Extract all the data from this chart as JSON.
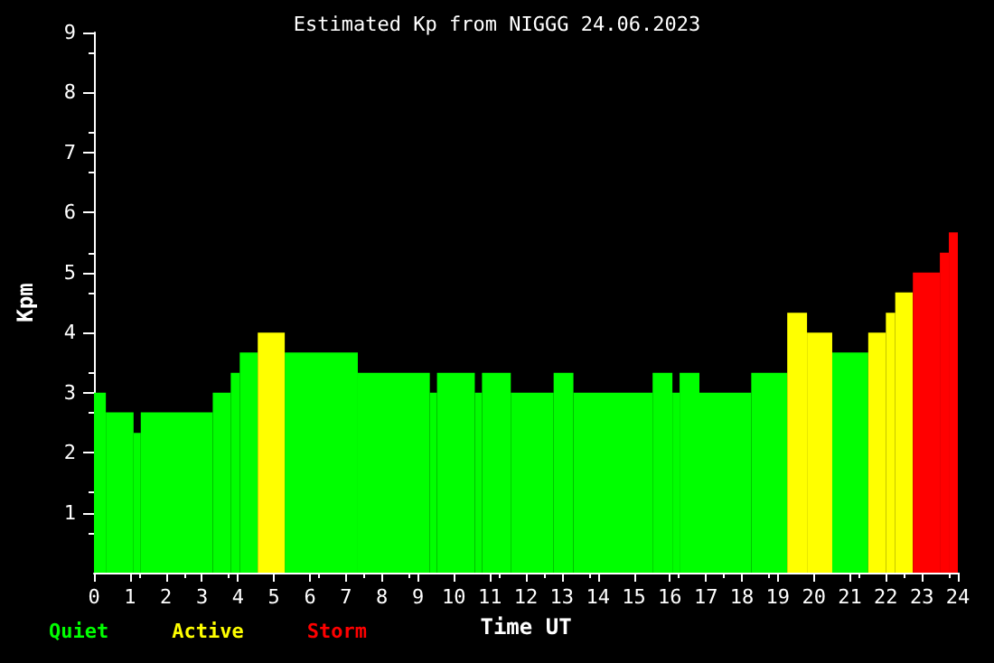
{
  "chart_data": {
    "type": "histogram",
    "title": "Estimated Kp from NIGGG 24.06.2023",
    "xlabel": "Time UT",
    "ylabel": "Kpm",
    "bins": [
      0,
      0.33,
      1.1,
      1.3,
      3.3,
      3.8,
      4.05,
      4.55,
      5.3,
      7.33,
      9.33,
      9.53,
      10.58,
      10.78,
      11.58,
      12.77,
      13.32,
      15.52,
      16.07,
      16.27,
      16.82,
      18.26,
      19.26,
      19.81,
      20.51,
      21.51,
      22.0,
      22.26,
      22.75,
      23.5,
      23.75,
      24
    ],
    "series": [
      {
        "name": "Quiet",
        "color": "#00ff00",
        "values": [
          3,
          2.67,
          2.33,
          2.67,
          3,
          3.33,
          3.67,
          null,
          3.67,
          3.33,
          3,
          3.33,
          3,
          3.33,
          3,
          3.33,
          3,
          3.33,
          3,
          3.33,
          3,
          3.33,
          null,
          null,
          3.67,
          null,
          null,
          null,
          null,
          null,
          null
        ]
      },
      {
        "name": "Active",
        "color": "#ffff00",
        "values": [
          null,
          null,
          null,
          null,
          null,
          null,
          null,
          4,
          null,
          null,
          null,
          null,
          null,
          null,
          null,
          null,
          null,
          null,
          null,
          null,
          null,
          null,
          4.33,
          4,
          null,
          4,
          4.33,
          4.67,
          null,
          null,
          null
        ]
      },
      {
        "name": "Storm",
        "color": "#ff0000",
        "values": [
          null,
          null,
          null,
          null,
          null,
          null,
          null,
          null,
          null,
          null,
          null,
          null,
          null,
          null,
          null,
          null,
          null,
          null,
          null,
          null,
          null,
          null,
          null,
          null,
          null,
          null,
          null,
          null,
          5,
          5.33,
          5.67
        ]
      }
    ],
    "xlim": [
      0,
      24
    ],
    "xticks": [
      0,
      1,
      2,
      3,
      4,
      5,
      6,
      7,
      8,
      9,
      10,
      11,
      12,
      13,
      14,
      15,
      16,
      17,
      18,
      19,
      20,
      21,
      22,
      23,
      24
    ],
    "ylim": [
      0,
      9
    ],
    "yticks": [
      1,
      2,
      3,
      4,
      5,
      6,
      7,
      8,
      9
    ],
    "grid": false,
    "legend": "bottom left"
  }
}
